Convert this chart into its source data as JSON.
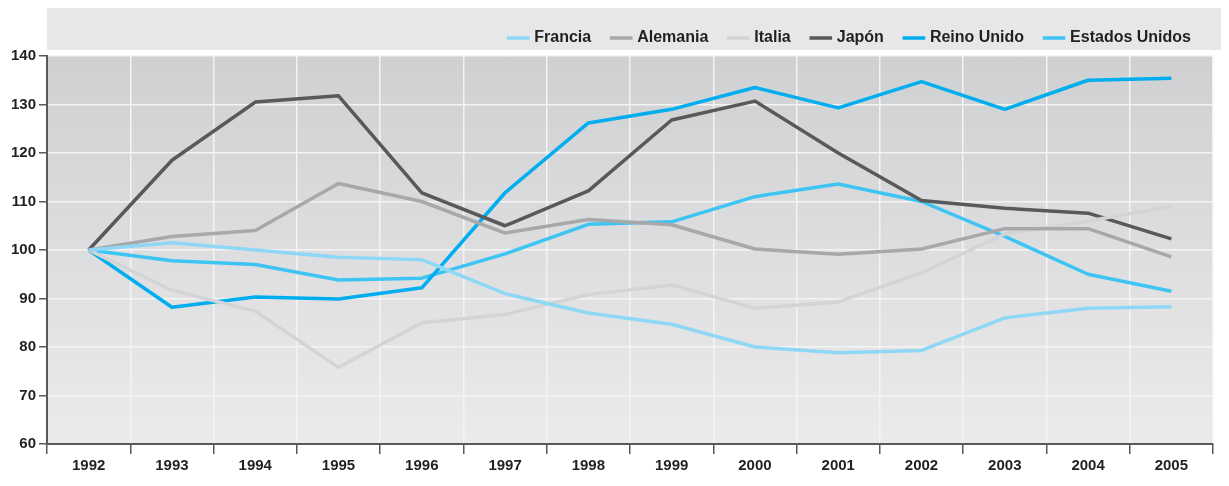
{
  "chart_data": {
    "type": "line",
    "categories": [
      "1992",
      "1993",
      "1994",
      "1995",
      "1996",
      "1997",
      "1998",
      "1999",
      "2000",
      "2001",
      "2002",
      "2003",
      "2004",
      "2005"
    ],
    "series": [
      {
        "name": "Francia",
        "color": "#8fd8f5",
        "values": [
          100,
          101.5,
          100,
          98.5,
          98,
          91,
          87,
          84.7,
          80,
          78.8,
          79.3,
          86,
          88,
          88.3
        ]
      },
      {
        "name": "Alemania",
        "color": "#a7a8aa",
        "values": [
          100,
          102.8,
          104,
          113.7,
          110,
          103.5,
          106.3,
          105.2,
          100.2,
          99.1,
          100.2,
          104.4,
          104.4,
          98.6
        ]
      },
      {
        "name": "Italia",
        "color": "#d3d4d6",
        "values": [
          100,
          91.7,
          87.4,
          75.8,
          85,
          86.7,
          90.8,
          92.8,
          88,
          89.3,
          95.3,
          103.3,
          106,
          109
        ]
      },
      {
        "name": "Japón",
        "color": "#58595b",
        "values": [
          100,
          118.5,
          130.5,
          131.8,
          111.8,
          105,
          112.2,
          126.8,
          130.7,
          120,
          110.2,
          108.6,
          107.6,
          102.3
        ]
      },
      {
        "name": "Reino Unido",
        "color": "#00aeef",
        "values": [
          100,
          88.2,
          90.3,
          89.9,
          92.2,
          111.8,
          126.2,
          129,
          133.5,
          129.3,
          134.7,
          129,
          135,
          135.4
        ]
      },
      {
        "name": "Estados Unidos",
        "color": "#3ec4f3",
        "values": [
          100,
          97.8,
          97,
          93.8,
          94.2,
          99.2,
          105.3,
          105.8,
          111,
          113.6,
          110,
          102.8,
          95,
          91.5
        ]
      }
    ],
    "ylim": [
      60,
      140
    ],
    "yticks": [
      60,
      70,
      80,
      90,
      100,
      110,
      120,
      130,
      140
    ],
    "grid": true,
    "legend": "top",
    "marker": "none",
    "line_style": "solid"
  }
}
